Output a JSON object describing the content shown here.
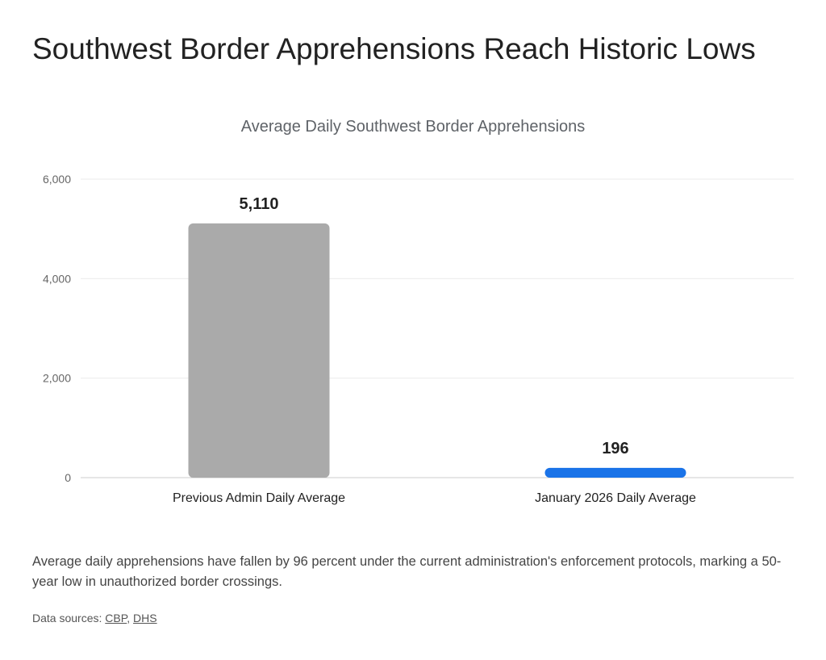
{
  "page": {
    "title": "Southwest Border Apprehensions Reach Historic Lows",
    "caption": "Average daily apprehensions have fallen by 96 percent under the current administration's enforcement protocols, marking a 50-year low in unauthorized border crossings.",
    "sources_label": "Data sources:",
    "sources": [
      "CBP",
      "DHS"
    ]
  },
  "chart_data": {
    "type": "bar",
    "title": "Average Daily Southwest Border Apprehensions",
    "categories": [
      "Previous Admin Daily Average",
      "January 2026 Daily Average"
    ],
    "values": [
      5110,
      196
    ],
    "data_labels": [
      "5,110",
      "196"
    ],
    "colors": [
      "#aaaaaa",
      "#1a73e8"
    ],
    "xlabel": "",
    "ylabel": "",
    "ylim": [
      0,
      6000
    ],
    "yticks": [
      0,
      2000,
      4000,
      6000
    ],
    "ytick_labels": [
      "0",
      "2,000",
      "4,000",
      "6,000"
    ],
    "grid": true,
    "legend": "none"
  }
}
